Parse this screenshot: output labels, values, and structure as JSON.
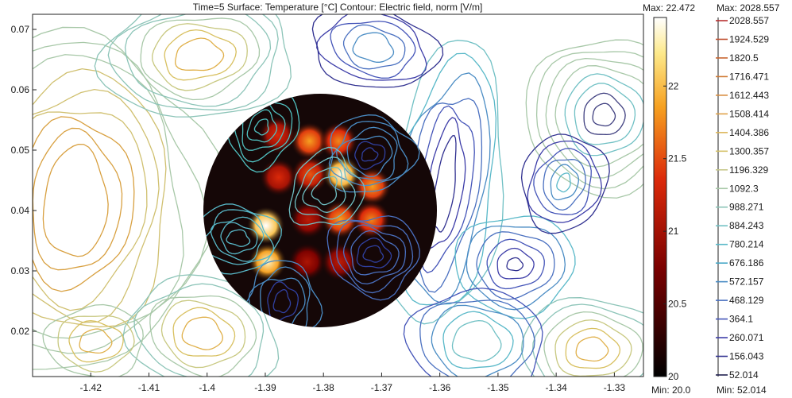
{
  "chart_data": {
    "type": "heatmap",
    "title": "Time=5    Surface: Temperature [°C]    Contour: Electric field, norm [V/m]",
    "x_ticks": [
      -1.42,
      -1.41,
      -1.4,
      -1.39,
      -1.38,
      -1.37,
      -1.36,
      -1.35,
      -1.34,
      -1.33
    ],
    "y_ticks": [
      0.07,
      0.06,
      0.05,
      0.04,
      0.03,
      0.02
    ],
    "xlim": [
      -1.43,
      -1.325
    ],
    "ylim": [
      0.0125,
      0.0725
    ],
    "grid": false,
    "surface": {
      "quantity": "Temperature",
      "max_label": "Max: 22.472",
      "min_label": "Min: 20.0",
      "range": [
        20.0,
        22.472
      ],
      "ticks": [
        "22",
        "21.5",
        "21",
        "20.5",
        "20"
      ],
      "tick_values": [
        22,
        21.5,
        21,
        20.5,
        20
      ],
      "colormap": "heat",
      "hot_spots": [
        {
          "x": -1.3879,
          "y": 0.0525,
          "t": 21.2
        },
        {
          "x": -1.3824,
          "y": 0.0515,
          "t": 21.7
        },
        {
          "x": -1.3774,
          "y": 0.0515,
          "t": 21.6
        },
        {
          "x": -1.3877,
          "y": 0.0455,
          "t": 21.2
        },
        {
          "x": -1.3823,
          "y": 0.046,
          "t": 21.4
        },
        {
          "x": -1.3769,
          "y": 0.046,
          "t": 22.3
        },
        {
          "x": -1.3716,
          "y": 0.044,
          "t": 21.7
        },
        {
          "x": -1.3899,
          "y": 0.0375,
          "t": 22.4
        },
        {
          "x": -1.3826,
          "y": 0.0385,
          "t": 21.0
        },
        {
          "x": -1.3771,
          "y": 0.0385,
          "t": 21.7
        },
        {
          "x": -1.3718,
          "y": 0.0385,
          "t": 21.6
        },
        {
          "x": -1.3896,
          "y": 0.0315,
          "t": 22.2
        },
        {
          "x": -1.3828,
          "y": 0.0315,
          "t": 20.9
        },
        {
          "x": -1.3772,
          "y": 0.0315,
          "t": 21.0
        }
      ]
    },
    "contour": {
      "quantity": "Electric field, norm",
      "max_label": "Max: 2028.557",
      "min_label": "Min: 52.014",
      "range": [
        52.014,
        2028.557
      ],
      "levels": [
        "2028.557",
        "1924.529",
        "1820.5",
        "1716.471",
        "1612.443",
        "1508.414",
        "1404.386",
        "1300.357",
        "1196.329",
        "1092.3",
        "988.271",
        "884.243",
        "780.214",
        "676.186",
        "572.157",
        "468.129",
        "364.1",
        "260.071",
        "156.043",
        "52.014"
      ],
      "level_colors": [
        "#b83030",
        "#c05030",
        "#c86530",
        "#d07a35",
        "#d88e40",
        "#e0a24a",
        "#dcb65a",
        "#d5c26a",
        "#c6c88a",
        "#a8c8a8",
        "#8cc4b8",
        "#70c0c4",
        "#58b8c8",
        "#48a8c8",
        "#4a8cc4",
        "#4a70c0",
        "#4454b8",
        "#3c3ca8",
        "#303090",
        "#202050"
      ]
    }
  }
}
